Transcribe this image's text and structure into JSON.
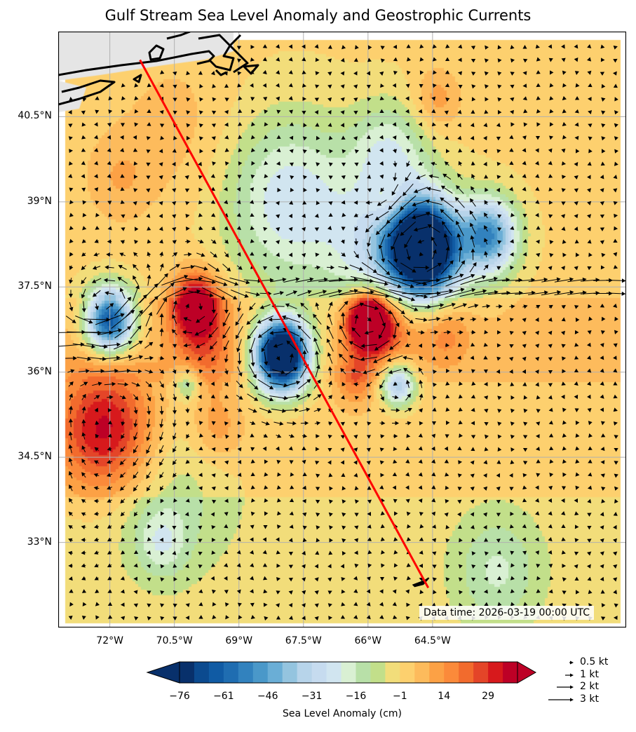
{
  "chart_data": {
    "type": "heatmap",
    "title": "Gulf Stream Sea Level Anomaly and Geostrophic Currents",
    "xlabel": "",
    "ylabel": "",
    "lon_range": [
      -73.2,
      -60.0
    ],
    "lat_range": [
      31.5,
      42.0
    ],
    "x_ticks": [
      "72°W",
      "70.5°W",
      "69°W",
      "67.5°W",
      "66°W",
      "64.5°W"
    ],
    "x_tick_values": [
      -72,
      -70.5,
      -69,
      -67.5,
      -66,
      -64.5
    ],
    "y_ticks": [
      "40.5°N",
      "39°N",
      "37.5°N",
      "36°N",
      "34.5°N",
      "33°N"
    ],
    "y_tick_values": [
      40.5,
      39,
      37.5,
      36,
      34.5,
      33
    ],
    "grid": true,
    "colorbar": {
      "label": "Sea Level Anomaly (cm)",
      "ticks": [
        "−76",
        "−61",
        "−46",
        "−31",
        "−16",
        "−1",
        "14",
        "29"
      ],
      "tick_values": [
        -76,
        -61,
        -46,
        -31,
        -16,
        -1,
        14,
        29
      ],
      "min": -76,
      "max": 39,
      "step": 5,
      "colors": [
        "#08306b",
        "#0b4a8f",
        "#105ba4",
        "#1f6db1",
        "#3282be",
        "#4a98c9",
        "#6aaed6",
        "#94c4df",
        "#b7d4ea",
        "#c6dbef",
        "#d1e5f0",
        "#d9f0d3",
        "#b8e0a8",
        "#c2df8a",
        "#f2dd7a",
        "#fdd06e",
        "#fdbb5c",
        "#fca145",
        "#fb8a3a",
        "#f26b2d",
        "#e44528",
        "#d7191c",
        "#bd0026"
      ],
      "extend": "both"
    },
    "sla_features": [
      {
        "lon": -68.0,
        "lat": 36.3,
        "amp": -110,
        "r": 0.6
      },
      {
        "lon": -64.7,
        "lat": 38.2,
        "amp": -95,
        "r": 0.75
      },
      {
        "lon": -63.2,
        "lat": 38.4,
        "amp": -50,
        "r": 0.65
      },
      {
        "lon": -65.3,
        "lat": 38.0,
        "amp": -35,
        "r": 1.3
      },
      {
        "lon": -72.0,
        "lat": 36.9,
        "amp": -70,
        "r": 0.55
      },
      {
        "lon": -65.3,
        "lat": 35.8,
        "amp": -38,
        "r": 0.4
      },
      {
        "lon": -70.2,
        "lat": 35.8,
        "amp": -20,
        "r": 0.3
      },
      {
        "lon": -66.0,
        "lat": 36.9,
        "amp": 60,
        "r": 0.5
      },
      {
        "lon": -65.5,
        "lat": 36.8,
        "amp": 25,
        "r": 0.8
      },
      {
        "lon": -70.0,
        "lat": 37.2,
        "amp": 44,
        "r": 0.55
      },
      {
        "lon": -69.8,
        "lat": 36.4,
        "amp": 18,
        "r": 0.75
      },
      {
        "lon": -72.1,
        "lat": 35.0,
        "amp": 35,
        "r": 1.1
      },
      {
        "lon": -66.3,
        "lat": 35.9,
        "amp": 18,
        "r": 0.45
      },
      {
        "lon": -64.2,
        "lat": 36.7,
        "amp": 15,
        "r": 0.6
      },
      {
        "lon": -69.5,
        "lat": 35.0,
        "amp": 12,
        "r": 0.6
      },
      {
        "lon": -67.8,
        "lat": 39.0,
        "amp": -25,
        "r": 1.5
      },
      {
        "lon": -65.5,
        "lat": 39.0,
        "amp": 12,
        "r": 0.45
      },
      {
        "lon": -64.4,
        "lat": 40.8,
        "amp": 12,
        "r": 0.55
      },
      {
        "lon": -65.5,
        "lat": 39.9,
        "amp": -18,
        "r": 0.9
      },
      {
        "lon": -70.5,
        "lat": 34.0,
        "amp": -10,
        "r": 1.5
      },
      {
        "lon": -70.8,
        "lat": 33.0,
        "amp": -14,
        "r": 0.6
      },
      {
        "lon": -63.0,
        "lat": 32.5,
        "amp": -14,
        "r": 1.0
      },
      {
        "lon": -70.5,
        "lat": 40.3,
        "amp": 6,
        "r": 1.4
      },
      {
        "lon": -71.8,
        "lat": 39.4,
        "amp": 8,
        "r": 0.8
      }
    ],
    "sla_background": [
      {
        "lat_max": 33.8,
        "value": -3
      },
      {
        "lat_max": 35.8,
        "value": 2
      },
      {
        "lat_max": 37.3,
        "value": 5
      },
      {
        "lat_max": 42.0,
        "value": 0
      }
    ],
    "jet": {
      "lat_west": 36.5,
      "lat_east": 37.7,
      "slope_lon_range": [
        -73.2,
        -70.5
      ],
      "lat_mid": 37.5,
      "width": 0.25,
      "speed_kt": 3.0
    },
    "eddy_currents": [
      {
        "lon": -68.0,
        "lat": 36.3,
        "sense": "ccw",
        "speed_kt": 2.0,
        "r": 0.6
      },
      {
        "lon": -64.7,
        "lat": 38.2,
        "sense": "ccw",
        "speed_kt": 1.8,
        "r": 0.75
      },
      {
        "lon": -72.0,
        "lat": 36.9,
        "sense": "ccw",
        "speed_kt": 1.5,
        "r": 0.55
      },
      {
        "lon": -66.0,
        "lat": 36.9,
        "sense": "cw",
        "speed_kt": 1.6,
        "r": 0.5
      },
      {
        "lon": -70.0,
        "lat": 37.2,
        "sense": "cw",
        "speed_kt": 1.4,
        "r": 0.55
      },
      {
        "lon": -65.3,
        "lat": 35.8,
        "sense": "ccw",
        "speed_kt": 1.1,
        "r": 0.4
      },
      {
        "lon": -65.5,
        "lat": 39.0,
        "sense": "cw",
        "speed_kt": 0.9,
        "r": 0.45
      },
      {
        "lon": -72.1,
        "lat": 35.0,
        "sense": "cw",
        "speed_kt": 0.8,
        "r": 1.1
      }
    ],
    "transect": {
      "color": "#ff0000",
      "start": {
        "lon": -71.3,
        "lat": 41.5
      },
      "end": {
        "lon": -64.6,
        "lat": 32.2
      }
    },
    "land": {
      "color": "#e5e5e5",
      "coast_color": "#000000"
    },
    "bermuda": {
      "lon": -64.75,
      "lat": 32.3
    },
    "quiver_key": [
      {
        "label": "0.5 kt",
        "value": 0.5
      },
      {
        "label": "1 kt",
        "value": 1
      },
      {
        "label": "2 kt",
        "value": 2
      },
      {
        "label": "3 kt",
        "value": 3
      }
    ],
    "annotation": "Data time: 2026-03-19 00:00 UTC"
  }
}
